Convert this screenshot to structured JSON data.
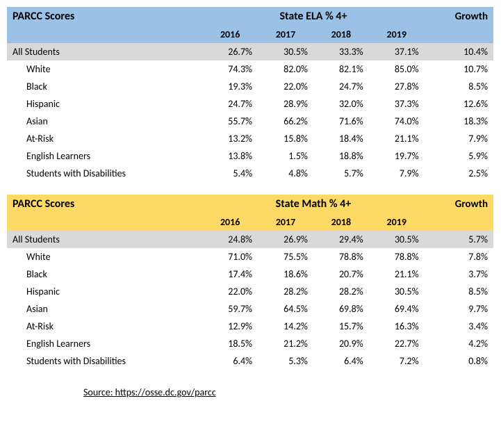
{
  "tables": [
    {
      "title": "PARCC Scores",
      "center_title": "State ELA % 4+",
      "growth_label": "Growth",
      "header_bg_class": "blue-bg",
      "years": [
        "2016",
        "2017",
        "2018",
        "2019"
      ],
      "rows": [
        {
          "label": "All Students",
          "vals": [
            "26.7%",
            "30.5%",
            "33.3%",
            "37.1%"
          ],
          "growth": "10.4%",
          "all": true
        },
        {
          "label": "White",
          "vals": [
            "74.3%",
            "82.0%",
            "82.1%",
            "85.0%"
          ],
          "growth": "10.7%"
        },
        {
          "label": "Black",
          "vals": [
            "19.3%",
            "22.0%",
            "24.7%",
            "27.8%"
          ],
          "growth": "8.5%"
        },
        {
          "label": "Hispanic",
          "vals": [
            "24.7%",
            "28.9%",
            "32.0%",
            "37.3%"
          ],
          "growth": "12.6%"
        },
        {
          "label": "Asian",
          "vals": [
            "55.7%",
            "66.2%",
            "71.6%",
            "74.0%"
          ],
          "growth": "18.3%"
        },
        {
          "label": "At-Risk",
          "vals": [
            "13.2%",
            "15.8%",
            "18.4%",
            "21.1%"
          ],
          "growth": "7.9%"
        },
        {
          "label": "English Learners",
          "vals": [
            "13.8%",
            "1.5%",
            "18.8%",
            "19.7%"
          ],
          "growth": "5.9%"
        },
        {
          "label": "Students with Disabilities",
          "vals": [
            "5.4%",
            "4.8%",
            "5.7%",
            "7.9%"
          ],
          "growth": "2.5%"
        }
      ]
    },
    {
      "title": "PARCC Scores",
      "center_title": "State Math % 4+",
      "growth_label": "Growth",
      "header_bg_class": "yellow-bg",
      "years": [
        "2016",
        "2017",
        "2018",
        "2019"
      ],
      "rows": [
        {
          "label": "All Students",
          "vals": [
            "24.8%",
            "26.9%",
            "29.4%",
            "30.5%"
          ],
          "growth": "5.7%",
          "all": true
        },
        {
          "label": "White",
          "vals": [
            "71.0%",
            "75.5%",
            "78.8%",
            "78.8%"
          ],
          "growth": "7.8%"
        },
        {
          "label": "Black",
          "vals": [
            "17.4%",
            "18.6%",
            "20.7%",
            "21.1%"
          ],
          "growth": "3.7%"
        },
        {
          "label": "Hispanic",
          "vals": [
            "22.0%",
            "28.2%",
            "28.2%",
            "30.5%"
          ],
          "growth": "8.5%"
        },
        {
          "label": "Asian",
          "vals": [
            "59.7%",
            "64.5%",
            "69.8%",
            "69.4%"
          ],
          "growth": "9.7%"
        },
        {
          "label": "At-Risk",
          "vals": [
            "12.9%",
            "14.2%",
            "15.7%",
            "16.3%"
          ],
          "growth": "3.4%"
        },
        {
          "label": "English Learners",
          "vals": [
            "18.5%",
            "21.2%",
            "20.9%",
            "22.7%"
          ],
          "growth": "4.2%"
        },
        {
          "label": "Students with Disabilities",
          "vals": [
            "6.4%",
            "5.3%",
            "6.4%",
            "7.2%"
          ],
          "growth": "0.8%"
        }
      ]
    }
  ],
  "source": "Source:  https://osse.dc.gov/parcc"
}
